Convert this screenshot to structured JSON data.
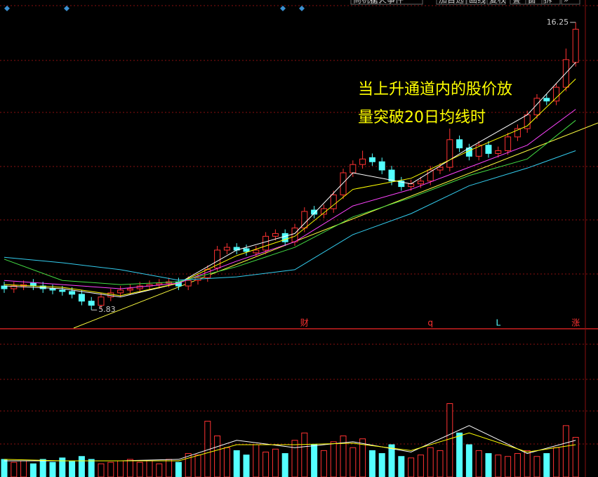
{
  "chart_data": {
    "type": "candlestick",
    "toolbar": [
      "商机榜",
      "星火事件",
      "加自选",
      "画线",
      "复权",
      "叠",
      "窗",
      "拆",
      "»"
    ],
    "annotation": [
      "当上升通道内的股价放",
      "量突破20日均线时"
    ],
    "markers": [
      {
        "text": "财",
        "index": 31,
        "color": "#ff3232"
      },
      {
        "text": "q",
        "index": 44,
        "color": "#ff3232"
      },
      {
        "text": "L",
        "index": 51,
        "color": "#54ffff"
      },
      {
        "text": "涨",
        "index": 59,
        "color": "#ff3232"
      }
    ],
    "up_color": "#ff3232",
    "down_color": "#54ffff",
    "ylim": [
      5.2,
      17.06
    ],
    "volume_ylim": [
      0,
      100
    ],
    "open": [
      6.7,
      6.6,
      6.7,
      6.8,
      6.7,
      6.6,
      6.55,
      6.5,
      6.4,
      6.15,
      6.0,
      6.3,
      6.45,
      6.55,
      6.6,
      6.7,
      6.75,
      6.8,
      6.85,
      6.7,
      6.9,
      7.0,
      7.35,
      8.0,
      8.1,
      8.05,
      7.9,
      8.0,
      8.5,
      8.6,
      8.3,
      8.8,
      9.45,
      9.3,
      9.5,
      10.0,
      10.8,
      11.1,
      11.35,
      11.2,
      10.9,
      10.5,
      10.3,
      10.4,
      10.5,
      10.9,
      11.0,
      12.0,
      11.7,
      11.4,
      11.8,
      11.5,
      11.6,
      12.1,
      12.4,
      12.9,
      13.5,
      13.4,
      13.9,
      14.8
    ],
    "high": [
      6.85,
      6.85,
      6.9,
      6.95,
      6.85,
      6.75,
      6.7,
      6.65,
      6.55,
      6.3,
      6.45,
      6.6,
      6.7,
      6.75,
      6.85,
      6.9,
      6.95,
      7.0,
      7.0,
      7.05,
      7.15,
      7.45,
      8.15,
      8.25,
      8.25,
      8.2,
      8.15,
      8.65,
      8.75,
      8.75,
      8.95,
      9.55,
      9.6,
      9.65,
      10.15,
      10.95,
      11.25,
      11.6,
      11.5,
      11.35,
      11.05,
      10.65,
      10.55,
      10.65,
      11.05,
      11.15,
      12.4,
      12.15,
      11.85,
      11.95,
      11.95,
      11.75,
      12.25,
      12.55,
      13.05,
      13.65,
      13.65,
      14.05,
      15.3,
      16.25
    ],
    "low": [
      6.45,
      6.45,
      6.55,
      6.55,
      6.45,
      6.4,
      6.35,
      6.25,
      6.0,
      5.83,
      5.85,
      6.15,
      6.3,
      6.4,
      6.45,
      6.55,
      6.6,
      6.65,
      6.55,
      6.55,
      6.75,
      6.85,
      7.2,
      7.85,
      7.85,
      7.8,
      7.75,
      7.85,
      8.35,
      8.15,
      8.15,
      8.65,
      9.15,
      9.15,
      9.35,
      9.85,
      10.65,
      10.95,
      11.05,
      10.75,
      10.35,
      10.15,
      10.15,
      10.25,
      10.35,
      10.75,
      10.85,
      11.55,
      11.25,
      11.25,
      11.35,
      11.35,
      11.45,
      11.95,
      12.25,
      12.75,
      13.25,
      13.25,
      13.75,
      14.65
    ],
    "close": [
      6.6,
      6.7,
      6.75,
      6.7,
      6.6,
      6.55,
      6.5,
      6.4,
      6.15,
      6.0,
      6.3,
      6.45,
      6.55,
      6.6,
      6.7,
      6.75,
      6.8,
      6.85,
      6.7,
      6.9,
      7.0,
      7.3,
      8.0,
      8.1,
      8.0,
      7.95,
      8.0,
      8.5,
      8.6,
      8.3,
      8.8,
      9.4,
      9.3,
      9.5,
      10.0,
      10.8,
      11.1,
      11.3,
      11.2,
      10.9,
      10.5,
      10.3,
      10.4,
      10.5,
      10.9,
      11.0,
      12.0,
      11.7,
      11.4,
      11.8,
      11.5,
      11.6,
      12.1,
      12.4,
      12.9,
      13.5,
      13.4,
      13.9,
      14.9,
      16.0
    ],
    "volume": [
      12,
      10,
      11,
      9,
      12,
      10,
      13,
      11,
      14,
      12,
      9,
      10,
      11,
      12,
      10,
      11,
      9,
      12,
      10,
      16,
      15,
      38,
      28,
      20,
      18,
      15,
      22,
      17,
      19,
      16,
      25,
      30,
      22,
      18,
      24,
      28,
      20,
      26,
      18,
      16,
      22,
      14,
      13,
      15,
      20,
      18,
      50,
      30,
      22,
      18,
      16,
      15,
      14,
      16,
      18,
      14,
      16,
      20,
      35,
      27
    ],
    "ma_lines": [
      {
        "color": "#ffffff",
        "x": [
          0,
          6,
          12,
          18,
          24,
          30,
          36,
          42,
          48,
          54,
          59
        ],
        "values": [
          6.7,
          6.6,
          6.3,
          6.8,
          8.0,
          8.6,
          10.8,
          10.4,
          11.7,
          12.9,
          14.8
        ]
      },
      {
        "color": "#ffff00",
        "x": [
          0,
          6,
          12,
          18,
          24,
          30,
          36,
          42,
          48,
          54,
          59
        ],
        "values": [
          6.75,
          6.65,
          6.35,
          6.8,
          7.8,
          8.5,
          10.2,
          10.6,
          11.6,
          12.5,
          14.2
        ]
      },
      {
        "color": "#ff44ff",
        "x": [
          0,
          6,
          12,
          18,
          24,
          30,
          36,
          42,
          48,
          54,
          59
        ],
        "values": [
          6.9,
          6.75,
          6.6,
          6.8,
          7.6,
          8.3,
          9.6,
          10.2,
          11.0,
          11.8,
          13.1
        ]
      },
      {
        "color": "#44dd44",
        "x": [
          0,
          6,
          12,
          18,
          24,
          30,
          36,
          42,
          48,
          54,
          59
        ],
        "values": [
          7.67,
          6.9,
          6.75,
          6.85,
          7.4,
          8.1,
          9.2,
          9.9,
          10.7,
          11.3,
          12.7
        ]
      },
      {
        "color": "#33ccee",
        "x": [
          0,
          6,
          12,
          18,
          24,
          30,
          36,
          42,
          48,
          54,
          59
        ],
        "values": [
          7.74,
          7.54,
          7.29,
          6.91,
          7.03,
          7.29,
          8.56,
          9.32,
          10.33,
          10.97,
          11.6
        ]
      }
    ],
    "volume_ma_lines": [
      {
        "color": "#ffffff",
        "x": [
          0,
          6,
          12,
          18,
          24,
          30,
          36,
          42,
          48,
          54,
          59
        ],
        "values": [
          11,
          11,
          11,
          12,
          25,
          20,
          24,
          17,
          35,
          16,
          25
        ]
      },
      {
        "color": "#ffff00",
        "x": [
          0,
          6,
          12,
          18,
          24,
          30,
          36,
          42,
          48,
          54,
          59
        ],
        "values": [
          12,
          11,
          11,
          11,
          22,
          22,
          23,
          18,
          30,
          17,
          22
        ]
      }
    ]
  }
}
